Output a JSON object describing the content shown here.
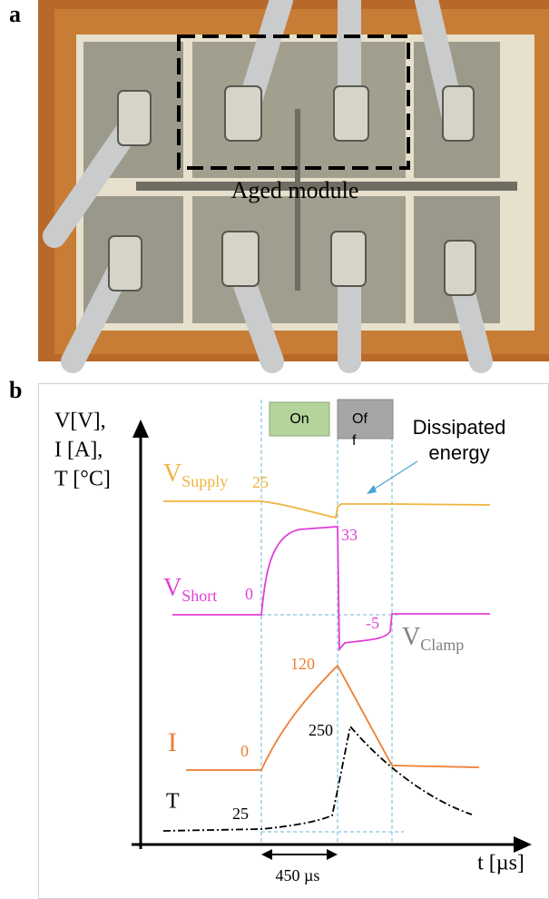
{
  "panel_a": {
    "label": "a",
    "annotation": "Aged module"
  },
  "panel_b": {
    "label": "b",
    "y_axis_label": [
      "V[V],",
      "I [A],",
      "T [°C]"
    ],
    "x_axis_label": "t [µs]",
    "phases": {
      "on": "On",
      "off": [
        "Of",
        "f"
      ]
    },
    "annotation": [
      "Dissipated",
      "energy"
    ],
    "traces": {
      "v_supply": {
        "symbol": "V",
        "subscript": "Supply",
        "value": "25"
      },
      "v_short": {
        "symbol": "V",
        "subscript": "Short",
        "start": "0",
        "peak": "33"
      },
      "v_clamp": {
        "symbol": "V",
        "subscript": "Clamp",
        "value": "-5"
      },
      "current": {
        "symbol": "I",
        "start": "0",
        "peak": "120"
      },
      "temperature": {
        "symbol": "T",
        "start": "25",
        "peak": "250"
      }
    },
    "duration": "450 µs"
  }
}
